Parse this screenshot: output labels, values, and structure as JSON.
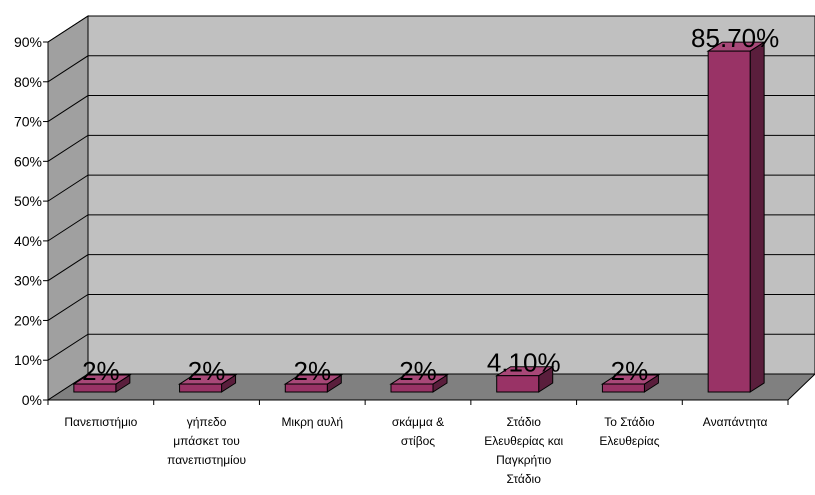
{
  "chart_data": {
    "type": "bar",
    "categories": [
      [
        "Πανεπιστήμιο"
      ],
      [
        "γήπεδο",
        "μπάσκετ του",
        "πανεπιστημίου"
      ],
      [
        "Μικρη αυλή"
      ],
      [
        "σκάμμα &",
        "στίβος"
      ],
      [
        "Στάδιο",
        "Ελευθερίας και",
        "Παγκρήτιο",
        "Στάδιο"
      ],
      [
        "Το Στάδιο",
        "Ελευθερίας"
      ],
      [
        "Αναπάντητα"
      ]
    ],
    "values": [
      2,
      2,
      2,
      2,
      4.1,
      2,
      85.7
    ],
    "data_labels": [
      "2%",
      "2%",
      "2%",
      "2%",
      "4.10%",
      "2%",
      "85.70%"
    ],
    "ylim": [
      0,
      90
    ],
    "yticks": [
      "0%",
      "10%",
      "20%",
      "30%",
      "40%",
      "50%",
      "60%",
      "70%",
      "80%",
      "90%"
    ],
    "grid": true,
    "colors": {
      "bar_front": "#993366",
      "bar_side": "#5a1e3c",
      "bar_top": "#a84878",
      "wall": "#c0c0c0",
      "floor": "#808080",
      "gridline": "#000000"
    }
  }
}
